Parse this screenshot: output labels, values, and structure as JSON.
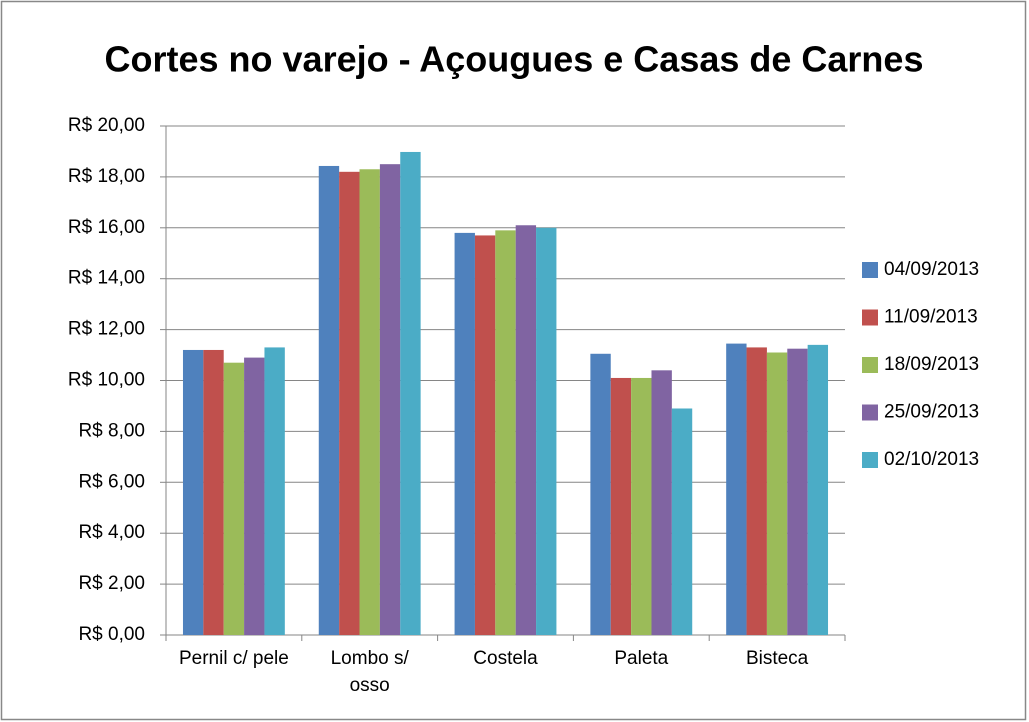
{
  "chart_data": {
    "type": "bar",
    "title": "Cortes no varejo - Açougues e Casas de Carnes",
    "categories": [
      "Pernil c/ pele",
      "Lombo s/ osso",
      "Costela",
      "Paleta",
      "Bisteca"
    ],
    "series": [
      {
        "name": "04/09/2013",
        "color": "#4f81bd",
        "values": [
          11.2,
          18.43,
          15.8,
          11.05,
          11.45
        ]
      },
      {
        "name": "11/09/2013",
        "color": "#c0504d",
        "values": [
          11.2,
          18.2,
          15.7,
          10.1,
          11.3
        ]
      },
      {
        "name": "18/09/2013",
        "color": "#9bbb59",
        "values": [
          10.7,
          18.3,
          15.9,
          10.1,
          11.1
        ]
      },
      {
        "name": "25/09/2013",
        "color": "#8064a2",
        "values": [
          10.9,
          18.5,
          16.1,
          10.4,
          11.25
        ]
      },
      {
        "name": "02/10/2013",
        "color": "#4bacc6",
        "values": [
          11.3,
          18.98,
          16.0,
          8.9,
          11.4
        ]
      }
    ],
    "ylim": [
      0,
      20
    ],
    "yticks": [
      {
        "value": 0,
        "label": "R$ 0,00"
      },
      {
        "value": 2,
        "label": "R$ 2,00"
      },
      {
        "value": 4,
        "label": "R$ 4,00"
      },
      {
        "value": 6,
        "label": "R$ 6,00"
      },
      {
        "value": 8,
        "label": "R$ 8,00"
      },
      {
        "value": 10,
        "label": "R$ 10,00"
      },
      {
        "value": 12,
        "label": "R$ 12,00"
      },
      {
        "value": 14,
        "label": "R$ 14,00"
      },
      {
        "value": 16,
        "label": "R$ 16,00"
      },
      {
        "value": 18,
        "label": "R$ 18,00"
      },
      {
        "value": 20,
        "label": "R$ 20,00"
      }
    ],
    "grid": true,
    "legend": "right"
  }
}
